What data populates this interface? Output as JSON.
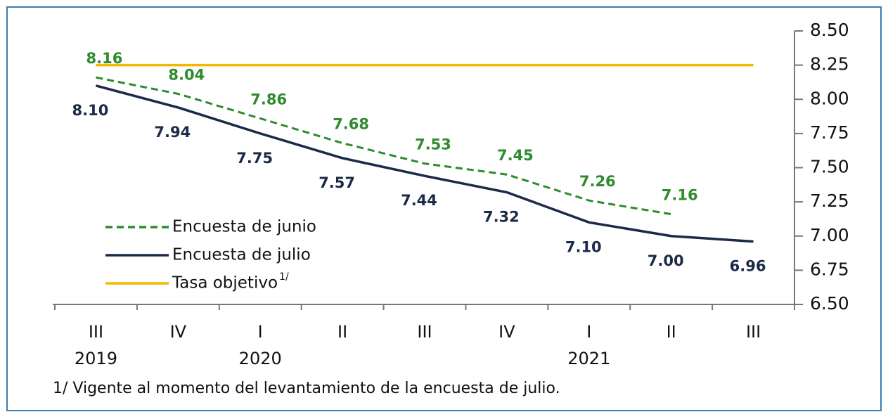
{
  "chart_data": {
    "type": "line",
    "categories": [
      "III",
      "IV",
      "I",
      "II",
      "III",
      "IV",
      "I",
      "II",
      "III"
    ],
    "years": [
      "2019",
      null,
      "2020",
      null,
      null,
      null,
      "2021",
      null,
      null
    ],
    "series": [
      {
        "name": "Encuesta de junio",
        "color": "#2e8b2e",
        "dash": true,
        "values": [
          8.16,
          8.04,
          7.86,
          7.68,
          7.53,
          7.45,
          7.26,
          7.16,
          null
        ],
        "value_labels": [
          "8.16",
          "8.04",
          "7.86",
          "7.68",
          "7.53",
          "7.45",
          "7.26",
          "7.16",
          null
        ]
      },
      {
        "name": "Encuesta de julio",
        "color": "#1b2a47",
        "dash": false,
        "values": [
          8.1,
          7.94,
          7.75,
          7.57,
          7.44,
          7.32,
          7.1,
          7.0,
          6.96
        ],
        "value_labels": [
          "8.10",
          "7.94",
          "7.75",
          "7.57",
          "7.44",
          "7.32",
          "7.10",
          "7.00",
          "6.96"
        ]
      },
      {
        "name": "Tasa objetivo",
        "superscript": "1/",
        "color": "#f5b800",
        "dash": false,
        "values": [
          8.25,
          8.25,
          8.25,
          8.25,
          8.25,
          8.25,
          8.25,
          8.25,
          8.25
        ]
      }
    ],
    "ylim": [
      6.5,
      8.5
    ],
    "yticks": [
      {
        "value": 6.5,
        "label": "6.50"
      },
      {
        "value": 6.75,
        "label": "6.75"
      },
      {
        "value": 7.0,
        "label": "7.00"
      },
      {
        "value": 7.25,
        "label": "7.25"
      },
      {
        "value": 7.5,
        "label": "7.50"
      },
      {
        "value": 7.75,
        "label": "7.75"
      },
      {
        "value": 8.0,
        "label": "8.00"
      },
      {
        "value": 8.25,
        "label": "8.25"
      },
      {
        "value": 8.5,
        "label": "8.50"
      }
    ],
    "note": "1/ Vigente al momento del levantamiento de la encuesta de julio."
  }
}
